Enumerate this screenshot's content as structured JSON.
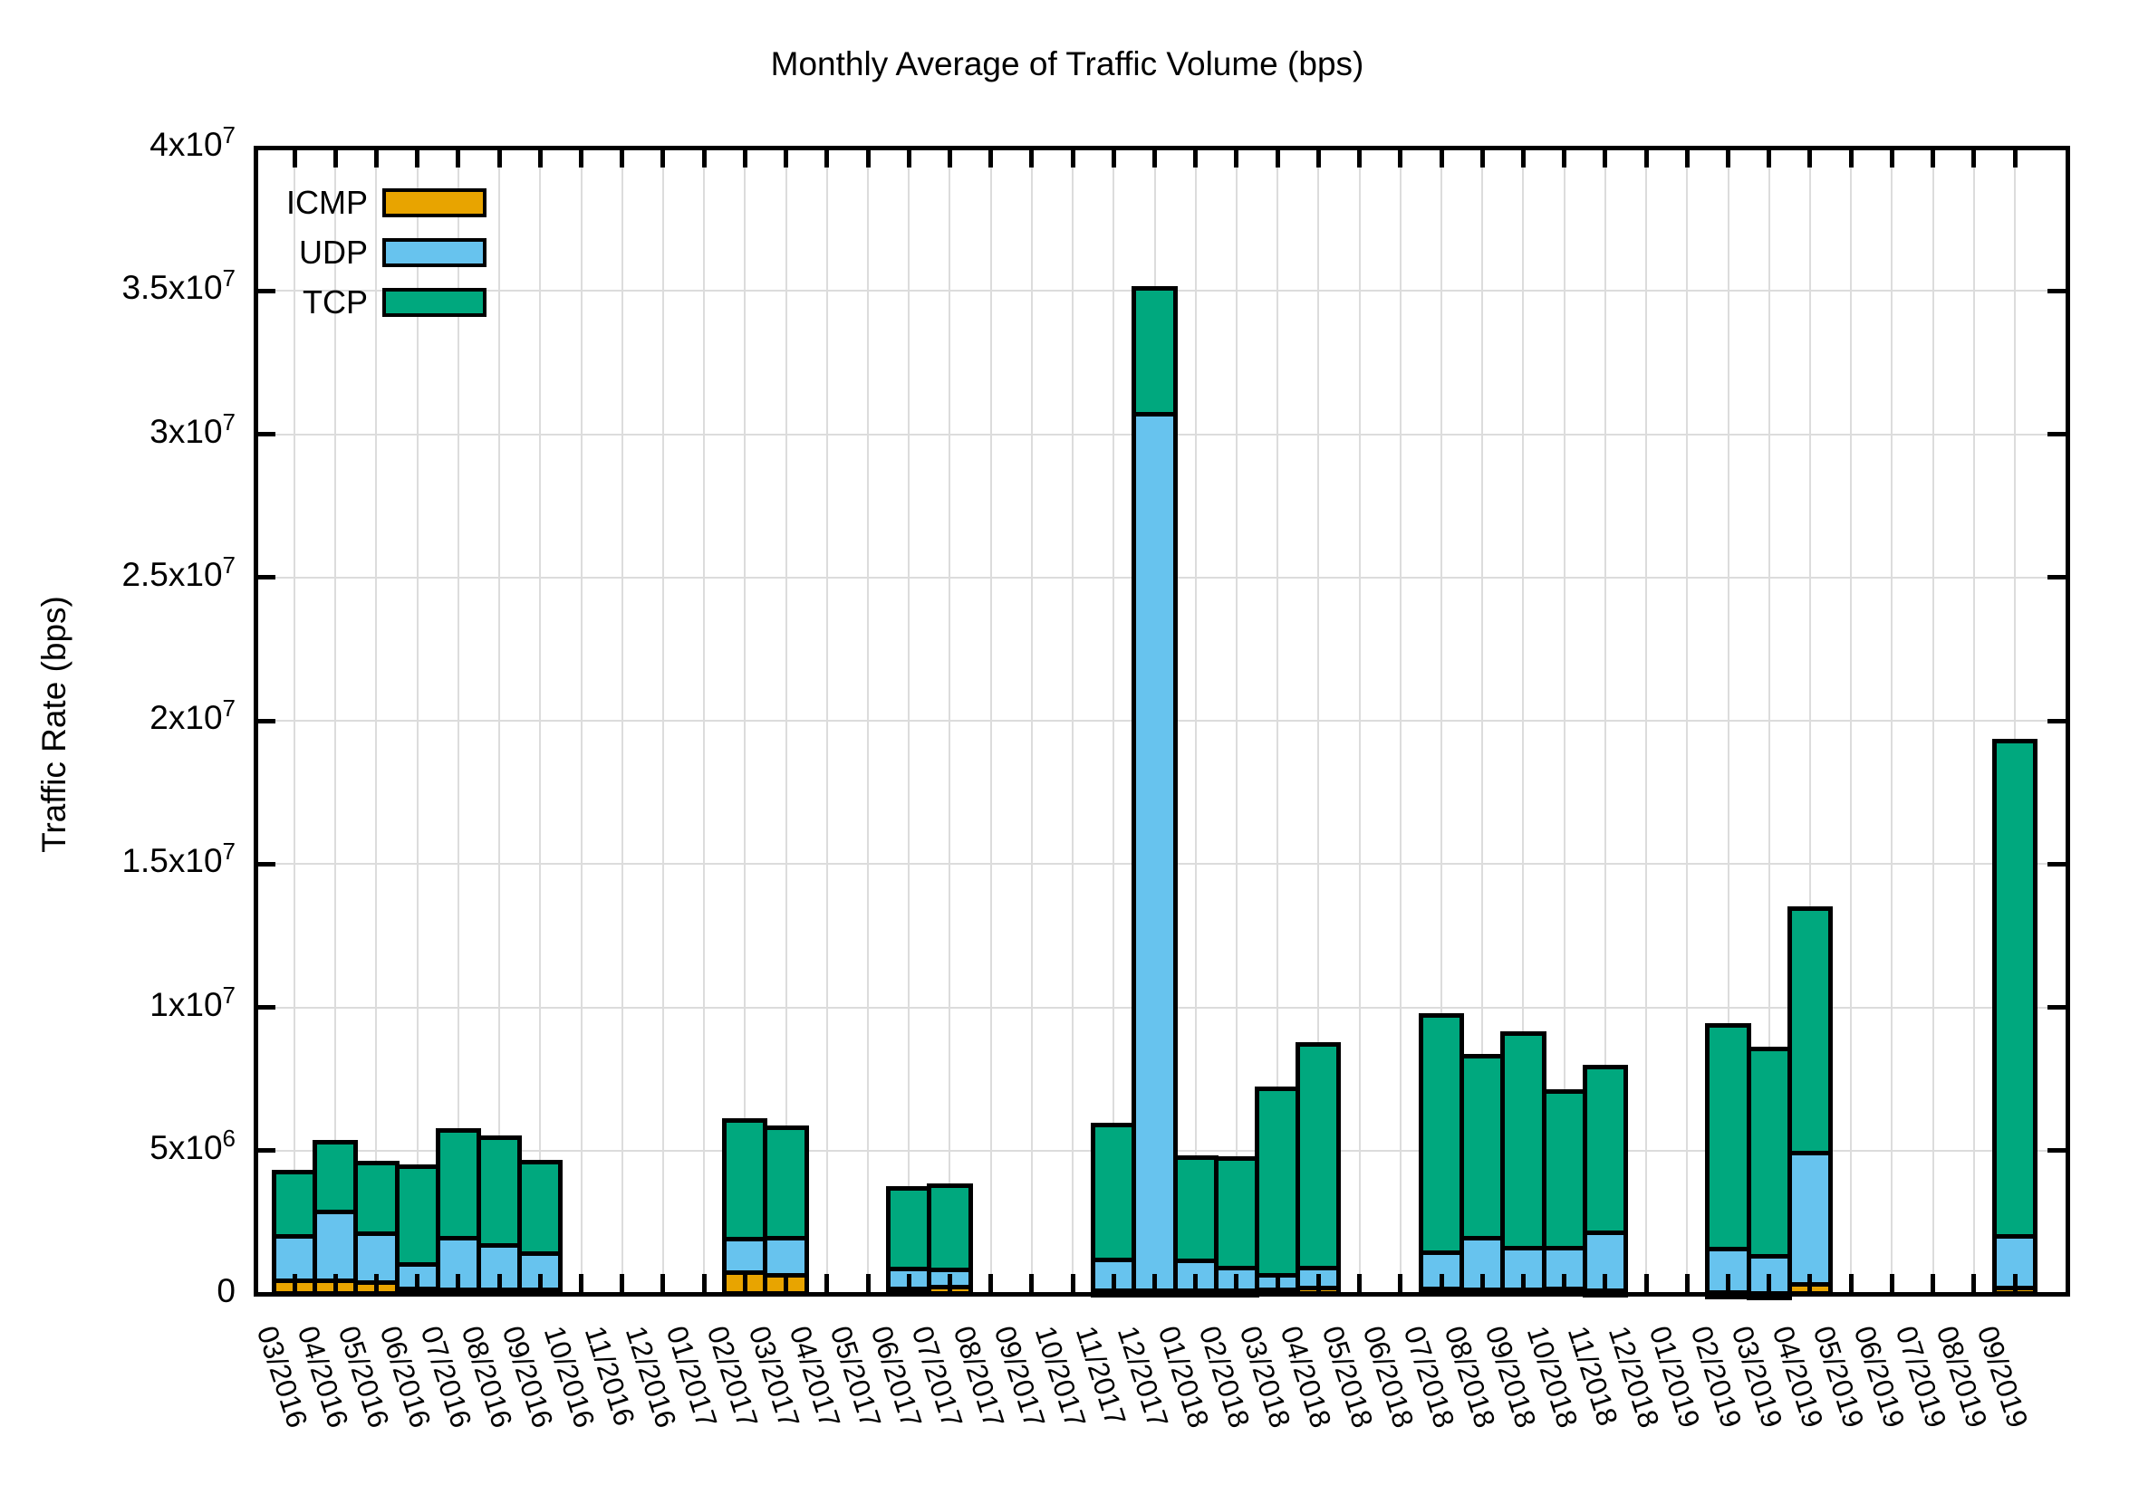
{
  "title": "Monthly Average of Traffic Volume (bps)",
  "y_axis": {
    "label": "Traffic Rate (bps)",
    "tick_labels": [
      "0",
      "5x10^6",
      "1x10^7",
      "1.5x10^7",
      "2x10^7",
      "2.5x10^7",
      "3x10^7",
      "3.5x10^7",
      "4x10^7"
    ]
  },
  "legend": {
    "items": [
      {
        "label": "ICMP",
        "color": "#e8a400"
      },
      {
        "label": "UDP",
        "color": "#67c3ee"
      },
      {
        "label": "TCP",
        "color": "#00a87e"
      }
    ]
  },
  "colors": {
    "bar_border": "#000000",
    "grid": "#dcdcdc",
    "background": "#ffffff"
  },
  "chart_data": {
    "type": "bar",
    "stacked": true,
    "title": "Monthly Average of Traffic Volume (bps)",
    "xlabel": "",
    "ylabel": "Traffic Rate (bps)",
    "ylim": [
      0,
      40000000
    ],
    "ytick_step": 5000000,
    "grid": true,
    "legend_position": "top-left",
    "categories": [
      "03/2016",
      "04/2016",
      "05/2016",
      "06/2016",
      "07/2016",
      "08/2016",
      "09/2016",
      "10/2016",
      "11/2016",
      "12/2016",
      "01/2017",
      "02/2017",
      "03/2017",
      "04/2017",
      "05/2017",
      "06/2017",
      "07/2017",
      "08/2017",
      "09/2017",
      "10/2017",
      "11/2017",
      "12/2017",
      "01/2018",
      "02/2018",
      "03/2018",
      "04/2018",
      "05/2018",
      "06/2018",
      "07/2018",
      "08/2018",
      "09/2018",
      "10/2018",
      "11/2018",
      "12/2018",
      "01/2019",
      "02/2019",
      "03/2019",
      "04/2019",
      "05/2019",
      "06/2019",
      "07/2019",
      "08/2019",
      "09/2019"
    ],
    "series": [
      {
        "name": "ICMP",
        "color": "#e8a400",
        "values": [
          450000,
          450000,
          400000,
          180000,
          150000,
          150000,
          130000,
          0,
          0,
          0,
          0,
          750000,
          650000,
          0,
          0,
          170000,
          250000,
          0,
          0,
          0,
          120000,
          100000,
          120000,
          100000,
          130000,
          200000,
          0,
          0,
          180000,
          150000,
          150000,
          170000,
          120000,
          0,
          0,
          50000,
          30000,
          330000,
          0,
          0,
          0,
          0,
          200000
        ]
      },
      {
        "name": "UDP",
        "color": "#67c3ee",
        "values": [
          1550000,
          2400000,
          1700000,
          850000,
          1800000,
          1550000,
          1270000,
          0,
          0,
          0,
          0,
          1150000,
          1280000,
          0,
          0,
          700000,
          600000,
          0,
          0,
          0,
          1070000,
          30600000,
          1020000,
          790000,
          530000,
          700000,
          0,
          0,
          1250000,
          1780000,
          1460000,
          1410000,
          2020000,
          0,
          0,
          1510000,
          1270000,
          4570000,
          0,
          0,
          0,
          0,
          1820000
        ]
      },
      {
        "name": "TCP",
        "color": "#00a87e",
        "values": [
          2250000,
          2450000,
          2450000,
          3400000,
          3750000,
          3750000,
          3200000,
          0,
          0,
          0,
          0,
          4150000,
          3880000,
          0,
          0,
          2810000,
          2940000,
          0,
          0,
          0,
          4700000,
          4400000,
          3610000,
          3830000,
          6500000,
          7800000,
          0,
          0,
          8300000,
          6370000,
          7460000,
          5470000,
          5790000,
          0,
          0,
          7800000,
          7240000,
          8530000,
          0,
          0,
          0,
          0,
          17280000
        ]
      }
    ]
  }
}
